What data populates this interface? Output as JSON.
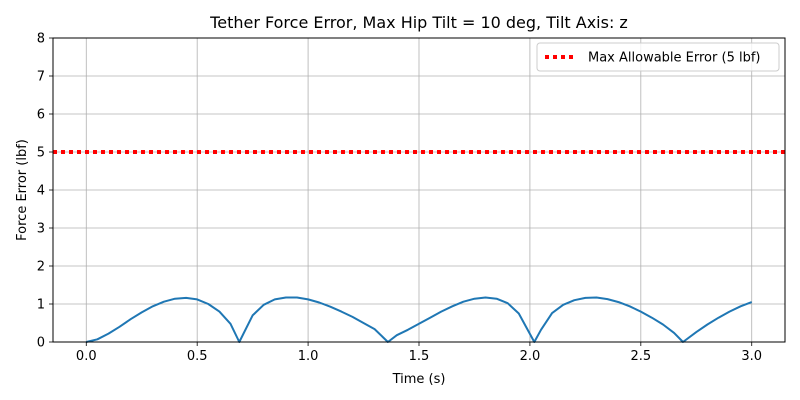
{
  "chart_data": {
    "type": "line",
    "title": "Tether Force Error, Max Hip Tilt = 10 deg, Tilt Axis: z",
    "xlabel": "Time (s)",
    "ylabel": "Force Error (lbf)",
    "xlim": [
      -0.15,
      3.15
    ],
    "ylim": [
      0,
      8
    ],
    "xticks": [
      0.0,
      0.5,
      1.0,
      1.5,
      2.0,
      2.5,
      3.0
    ],
    "xtick_labels": [
      "0.0",
      "0.5",
      "1.0",
      "1.5",
      "2.0",
      "2.5",
      "3.0"
    ],
    "yticks": [
      0,
      1,
      2,
      3,
      4,
      5,
      6,
      7,
      8
    ],
    "ytick_labels": [
      "0",
      "1",
      "2",
      "3",
      "4",
      "5",
      "6",
      "7",
      "8"
    ],
    "grid": true,
    "legend_position": "top-right",
    "series": [
      {
        "name": "",
        "color": "#1f77b4",
        "style": "solid",
        "x": [
          0.0,
          0.05,
          0.1,
          0.15,
          0.2,
          0.25,
          0.3,
          0.35,
          0.4,
          0.45,
          0.5,
          0.55,
          0.6,
          0.65,
          0.69,
          0.75,
          0.8,
          0.85,
          0.9,
          0.95,
          1.0,
          1.05,
          1.1,
          1.15,
          1.2,
          1.25,
          1.3,
          1.36,
          1.4,
          1.45,
          1.5,
          1.55,
          1.6,
          1.65,
          1.7,
          1.75,
          1.8,
          1.85,
          1.9,
          1.95,
          2.02,
          2.05,
          2.1,
          2.15,
          2.2,
          2.25,
          2.3,
          2.35,
          2.4,
          2.45,
          2.5,
          2.55,
          2.6,
          2.65,
          2.69,
          2.75,
          2.8,
          2.85,
          2.9,
          2.95,
          3.0
        ],
        "y": [
          0.0,
          0.07,
          0.22,
          0.4,
          0.6,
          0.78,
          0.94,
          1.06,
          1.14,
          1.16,
          1.12,
          1.0,
          0.8,
          0.48,
          0.0,
          0.7,
          0.98,
          1.12,
          1.17,
          1.17,
          1.12,
          1.04,
          0.93,
          0.8,
          0.66,
          0.5,
          0.34,
          0.0,
          0.18,
          0.32,
          0.48,
          0.64,
          0.8,
          0.94,
          1.06,
          1.14,
          1.17,
          1.14,
          1.02,
          0.75,
          0.0,
          0.32,
          0.76,
          0.98,
          1.1,
          1.16,
          1.17,
          1.13,
          1.05,
          0.94,
          0.8,
          0.64,
          0.46,
          0.24,
          0.0,
          0.26,
          0.46,
          0.64,
          0.8,
          0.94,
          1.05
        ]
      },
      {
        "name": "Max Allowable Error (5 lbf)",
        "color": "#ff0000",
        "style": "dotted",
        "x": [
          -0.15,
          3.15
        ],
        "y": [
          5,
          5
        ]
      }
    ]
  }
}
